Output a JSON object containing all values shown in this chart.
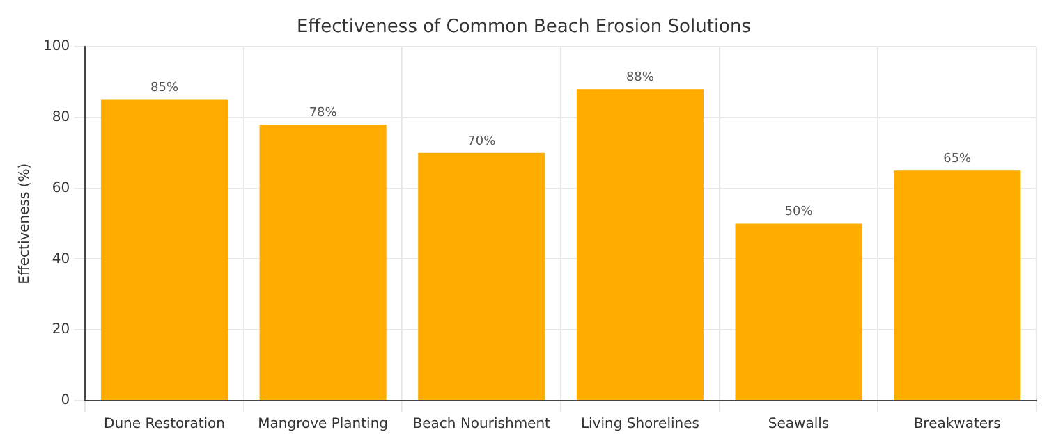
{
  "chart_data": {
    "type": "bar",
    "title": "Effectiveness of Common Beach Erosion Solutions",
    "ylabel": "Effectiveness (%)",
    "categories": [
      "Dune Restoration",
      "Mangrove Planting",
      "Beach Nourishment",
      "Living Shorelines",
      "Seawalls",
      "Breakwaters"
    ],
    "values": [
      85,
      78,
      70,
      88,
      50,
      65
    ],
    "value_labels": [
      "85%",
      "78%",
      "70%",
      "88%",
      "50%",
      "65%"
    ],
    "color": "#ffab00",
    "ylim": [
      0,
      100
    ],
    "yticks": [
      0,
      20,
      40,
      60,
      80,
      100
    ],
    "grid": true
  }
}
